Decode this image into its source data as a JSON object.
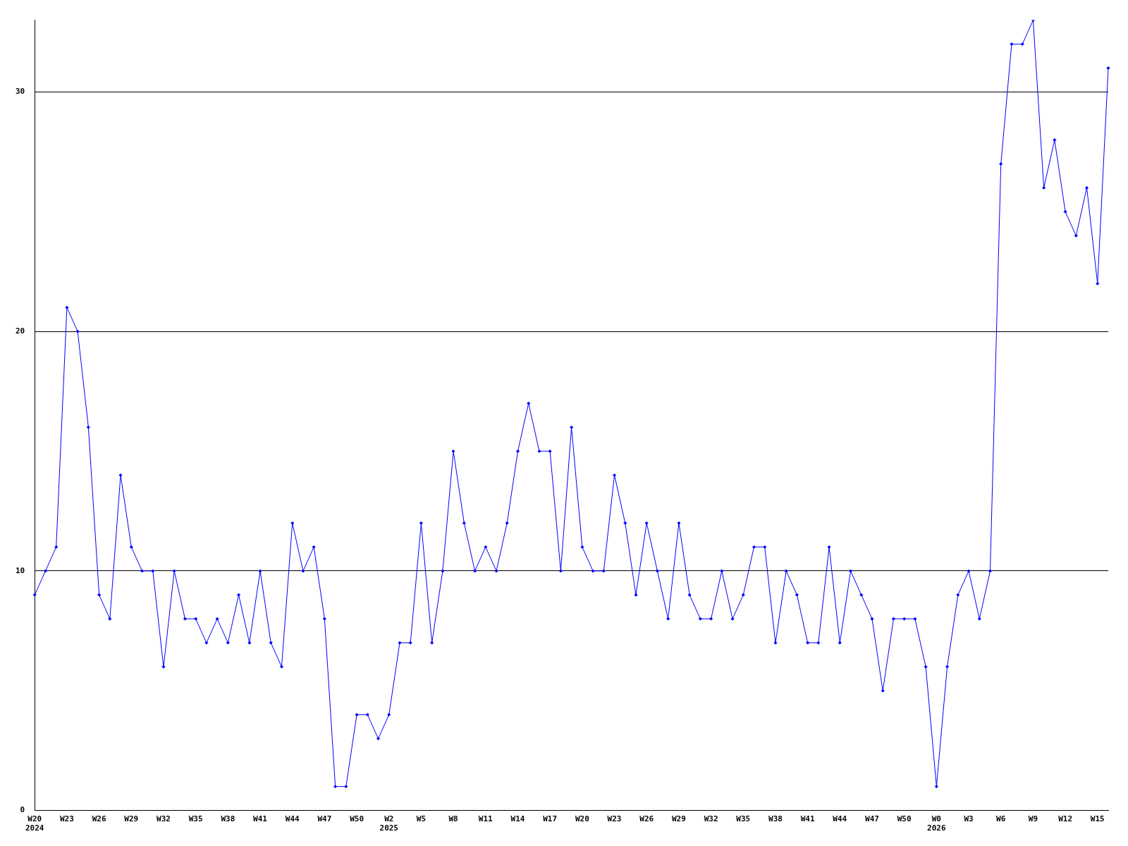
{
  "chart_data": {
    "type": "line",
    "categories": [
      "W20\n2024",
      null,
      null,
      "W23",
      null,
      null,
      "W26",
      null,
      null,
      "W29",
      null,
      null,
      "W32",
      null,
      null,
      "W35",
      null,
      null,
      "W38",
      null,
      null,
      "W41",
      null,
      null,
      "W44",
      null,
      null,
      "W47",
      null,
      null,
      "W50",
      null,
      null,
      "W2\n2025",
      null,
      null,
      "W5",
      null,
      null,
      "W8",
      null,
      null,
      "W11",
      null,
      null,
      "W14",
      null,
      null,
      "W17",
      null,
      null,
      "W20",
      null,
      null,
      "W23",
      null,
      null,
      "W26",
      null,
      null,
      "W29",
      null,
      null,
      "W32",
      null,
      null,
      "W35",
      null,
      null,
      "W38",
      null,
      null,
      "W41",
      null,
      null,
      "W44",
      null,
      null,
      "W47",
      null,
      null,
      "W50",
      null,
      null,
      "W0\n2026",
      null,
      null,
      "W3",
      null,
      null,
      "W6",
      null,
      null,
      "W9",
      null,
      null,
      "W12",
      null,
      null,
      "W15",
      null
    ],
    "series": [
      {
        "color": "#0000ff",
        "values": [
          9,
          10,
          11,
          21,
          20,
          16,
          9,
          8,
          14,
          11,
          10,
          10,
          6,
          10,
          8,
          8,
          7,
          8,
          7,
          9,
          7,
          10,
          7,
          6,
          12,
          10,
          11,
          8,
          1,
          1,
          4,
          4,
          3,
          4,
          7,
          7,
          12,
          7,
          10,
          15,
          12,
          10,
          11,
          10,
          12,
          15,
          17,
          15,
          15,
          10,
          16,
          11,
          10,
          10,
          14,
          12,
          9,
          12,
          10,
          8,
          12,
          9,
          8,
          8,
          10,
          8,
          9,
          11,
          11,
          7,
          10,
          9,
          7,
          7,
          11,
          7,
          10,
          9,
          8,
          5,
          8,
          8,
          8,
          6,
          1,
          6,
          9,
          10,
          8,
          10,
          27,
          32,
          32,
          33,
          26,
          28,
          25,
          24,
          26,
          22,
          31
        ]
      }
    ],
    "ylim": [
      0,
      33
    ],
    "yticks": [
      0,
      10,
      20,
      30
    ],
    "grid": "y",
    "legend": false,
    "marker": "diamond",
    "line_style": "solid"
  }
}
